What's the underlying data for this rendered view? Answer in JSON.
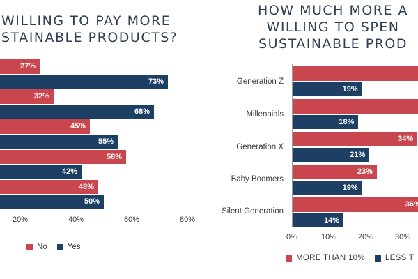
{
  "chart_data": [
    {
      "type": "bar",
      "orientation": "horizontal",
      "title": "WILLING TO PAY MORE\nSTAINABLE PRODUCTS?",
      "xlim": [
        0,
        80
      ],
      "xticks": [
        "20%",
        "40%",
        "60%",
        "80%"
      ],
      "xtick_values": [
        20,
        40,
        60,
        80
      ],
      "series": [
        {
          "name": "No",
          "color": "#c9464f"
        },
        {
          "name": "Yes",
          "color": "#1d3f63"
        }
      ],
      "bars": [
        {
          "series": "No",
          "value": 27,
          "label": "27%"
        },
        {
          "series": "Yes",
          "value": 73,
          "label": "73%"
        },
        {
          "series": "No",
          "value": 32,
          "label": "32%"
        },
        {
          "series": "Yes",
          "value": 68,
          "label": "68%"
        },
        {
          "series": "No",
          "value": 45,
          "label": "45%"
        },
        {
          "series": "Yes",
          "value": 55,
          "label": "55%"
        },
        {
          "series": "No",
          "value": 58,
          "label": "58%"
        },
        {
          "series": "Yes",
          "value": 42,
          "label": "42%"
        },
        {
          "series": "No",
          "value": 48,
          "label": "48%"
        },
        {
          "series": "Yes",
          "value": 50,
          "label": "50%"
        }
      ],
      "legend": {
        "position": "bottom",
        "items": [
          "No",
          "Yes"
        ]
      }
    },
    {
      "type": "bar",
      "orientation": "horizontal",
      "title": "HOW MUCH MORE A\nWILLING TO SPEN\nSUSTAINABLE PROD",
      "xlim": [
        0,
        40
      ],
      "xticks": [
        "0%",
        "10%",
        "20%",
        "30%"
      ],
      "xtick_values": [
        0,
        10,
        20,
        30
      ],
      "categories": [
        "Generation Z",
        "Millennials",
        "Generation X",
        "Baby Boomers",
        "Silent Generation"
      ],
      "series": [
        {
          "name": "MORE THAN 10%",
          "color": "#c9464f",
          "values": [
            null,
            null,
            34,
            23,
            36
          ],
          "labels": [
            "",
            "",
            "34%",
            "23%",
            "36%"
          ]
        },
        {
          "name": "LESS T",
          "color": "#1d3f63",
          "values": [
            19,
            18,
            21,
            19,
            14
          ],
          "labels": [
            "19%",
            "18%",
            "21%",
            "19%",
            "14%"
          ]
        }
      ],
      "legend": {
        "position": "bottom",
        "items": [
          "MORE THAN 10%",
          "LESS T"
        ]
      }
    }
  ],
  "left_title_lines": [
    "WILLING TO PAY MORE",
    "STAINABLE PRODUCTS?"
  ],
  "right_title_lines": [
    "HOW MUCH MORE A",
    "WILLING TO SPEN",
    "SUSTAINABLE PROD"
  ]
}
